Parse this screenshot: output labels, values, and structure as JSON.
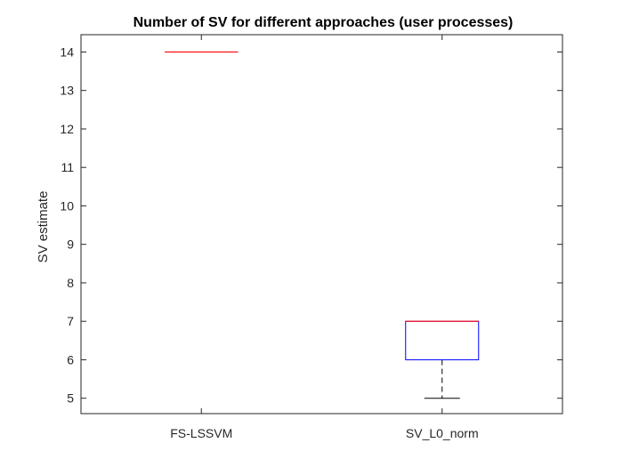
{
  "chart_data": {
    "type": "box",
    "title": "Number of SV for different approaches (user processes)",
    "xlabel": "",
    "ylabel": "SV estimate",
    "categories": [
      "FS-LSSVM",
      "SV_L0_norm"
    ],
    "ylim": [
      4.6,
      14.45
    ],
    "yticks": [
      5,
      6,
      7,
      8,
      9,
      10,
      11,
      12,
      13,
      14
    ],
    "grid": false,
    "boxes": [
      {
        "category": "FS-LSSVM",
        "min": 14,
        "q1": 14,
        "median": 14,
        "q3": 14,
        "max": 14
      },
      {
        "category": "SV_L0_norm",
        "min": 5,
        "q1": 6,
        "median": 7,
        "q3": 7,
        "max": 7
      }
    ],
    "colors": {
      "box": "#0000ff",
      "median": "#ff0000",
      "whisker": "#000000",
      "axis": "#262626"
    }
  }
}
